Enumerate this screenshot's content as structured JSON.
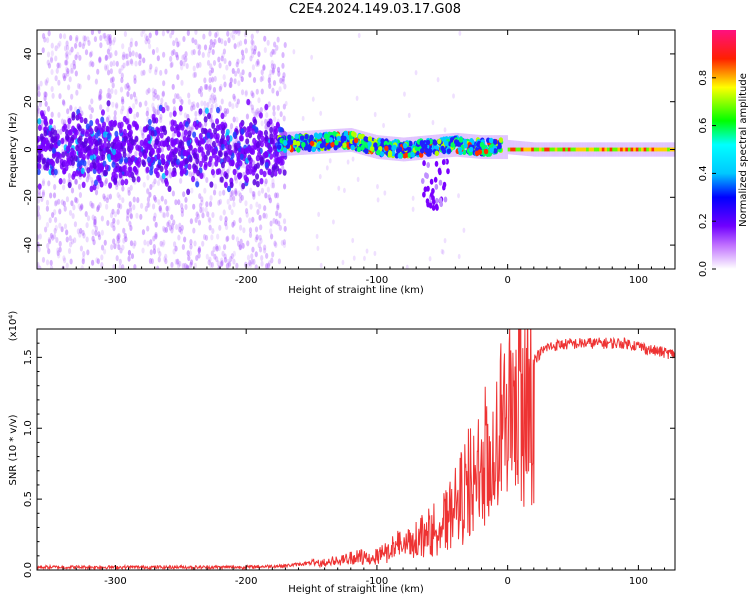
{
  "title": "C2E4.2024.149.03.17.G08",
  "chart_data": [
    {
      "type": "heatmap",
      "xlabel": "Height of straight line (km)",
      "ylabel": "Frequency (Hz)",
      "xlim": [
        -360,
        128
      ],
      "ylim": [
        -50,
        50
      ],
      "xticks": [
        -300,
        -200,
        -100,
        0,
        100
      ],
      "yticks": [
        -40,
        -20,
        0,
        20,
        40
      ],
      "colorbar": {
        "label": "Normalized spectral amplitude",
        "range": [
          0,
          1
        ],
        "ticks": [
          "0.0",
          "0.2",
          "0.4",
          "0.6",
          "0.8"
        ],
        "colors": [
          "#ffffff",
          "#7b00ff",
          "#0000ff",
          "#00ffff",
          "#00ff00",
          "#ffff00",
          "#ff0000",
          "#ff00c8"
        ]
      },
      "signal_trace": {
        "x": [
          -360,
          -300,
          -250,
          -200,
          -180,
          -150,
          -120,
          -100,
          -80,
          -60,
          -40,
          -20,
          0,
          20,
          60,
          100,
          128
        ],
        "y": [
          0,
          0,
          0,
          0,
          2,
          3,
          4,
          1,
          0,
          1,
          2,
          1,
          1,
          0,
          0,
          0,
          0
        ]
      }
    },
    {
      "type": "line",
      "xlabel": "Height of straight line (km)",
      "ylabel": "SNR (10 * v/v)",
      "ylabel_multiplier": "(x10⁴)",
      "xlim": [
        -360,
        128
      ],
      "ylim": [
        0,
        1.7
      ],
      "xticks": [
        -300,
        -200,
        -100,
        0,
        100
      ],
      "yticks": [
        "0.0",
        "0.5",
        "1.0",
        "1.5"
      ],
      "color": "#ee3333",
      "x": [
        -360,
        -300,
        -250,
        -200,
        -170,
        -150,
        -130,
        -110,
        -100,
        -90,
        -80,
        -70,
        -60,
        -50,
        -45,
        -40,
        -35,
        -30,
        -25,
        -20,
        -15,
        -10,
        -5,
        0,
        5,
        10,
        15,
        20,
        25,
        30,
        40,
        60,
        80,
        90,
        100,
        110,
        128
      ],
      "y": [
        0.02,
        0.02,
        0.02,
        0.02,
        0.03,
        0.05,
        0.07,
        0.1,
        0.13,
        0.16,
        0.2,
        0.25,
        0.3,
        0.36,
        0.4,
        0.48,
        0.55,
        0.65,
        0.72,
        0.8,
        0.88,
        0.95,
        1.05,
        1.15,
        1.25,
        1.32,
        1.4,
        1.48,
        1.53,
        1.57,
        1.59,
        1.6,
        1.6,
        1.6,
        1.58,
        1.55,
        1.52
      ]
    }
  ]
}
